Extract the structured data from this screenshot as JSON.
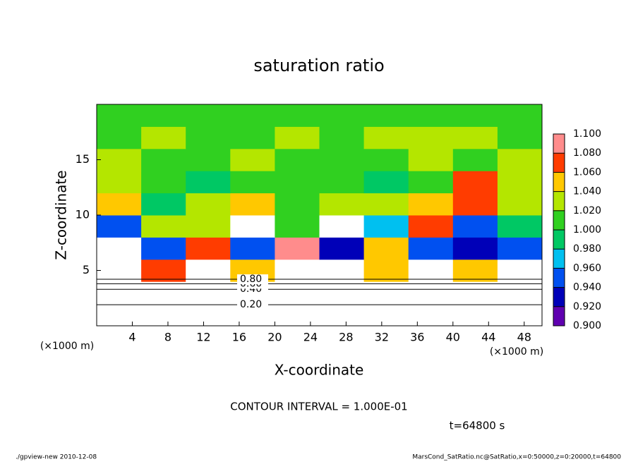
{
  "chart_data": {
    "type": "contour-map",
    "title": "saturation ratio",
    "x_label": "X-coordinate",
    "y_label": "Z-coordinate",
    "x_unit": "(×1000 m)",
    "y_unit": "(×1000 m)",
    "xlim": [
      0,
      50
    ],
    "ylim": [
      0,
      20
    ],
    "xticks": [
      4,
      8,
      12,
      16,
      20,
      24,
      28,
      32,
      36,
      40,
      44,
      48
    ],
    "yticks": [
      5,
      10,
      15
    ],
    "x": [
      2.5,
      7.5,
      12.5,
      17.5,
      22.5,
      27.5,
      32.5,
      37.5,
      42.5,
      47.5
    ],
    "z": [
      1,
      3,
      5,
      7,
      9,
      11,
      13,
      15,
      17,
      19
    ],
    "field": [
      [
        0.1,
        0.1,
        0.1,
        0.1,
        0.1,
        0.1,
        0.1,
        0.1,
        0.1,
        0.1
      ],
      [
        0.6,
        0.6,
        0.6,
        0.6,
        0.6,
        0.6,
        0.6,
        0.6,
        0.6,
        0.6
      ],
      [
        1.12,
        1.06,
        1.12,
        1.04,
        1.12,
        1.12,
        1.04,
        1.12,
        1.05,
        1.12
      ],
      [
        1.12,
        0.95,
        1.06,
        0.94,
        1.08,
        0.93,
        1.04,
        0.95,
        0.93,
        0.95
      ],
      [
        0.95,
        1.02,
        1.03,
        1.12,
        1.0,
        1.12,
        0.97,
        1.06,
        0.94,
        0.98
      ],
      [
        1.05,
        0.99,
        1.02,
        1.04,
        1.01,
        1.03,
        1.02,
        1.04,
        1.07,
        1.02
      ],
      [
        1.02,
        1.01,
        0.99,
        1.0,
        1.01,
        1.0,
        0.99,
        1.01,
        1.06,
        1.03
      ],
      [
        1.03,
        1.0,
        1.01,
        1.02,
        1.01,
        1.0,
        1.01,
        1.02,
        1.0,
        1.02
      ],
      [
        1.01,
        1.03,
        1.01,
        1.01,
        1.02,
        1.01,
        1.02,
        1.03,
        1.02,
        1.01
      ],
      [
        1.01,
        1.01,
        1.01,
        1.01,
        1.01,
        1.01,
        1.01,
        1.01,
        1.01,
        1.01
      ]
    ],
    "levels": [
      {
        "value": 0.9,
        "label": "0.900"
      },
      {
        "value": 0.92,
        "label": "0.920"
      },
      {
        "value": 0.94,
        "label": "0.940"
      },
      {
        "value": 0.96,
        "label": "0.960"
      },
      {
        "value": 0.98,
        "label": "0.980"
      },
      {
        "value": 1.0,
        "label": "1.000"
      },
      {
        "value": 1.02,
        "label": "1.020"
      },
      {
        "value": 1.04,
        "label": "1.040"
      },
      {
        "value": 1.06,
        "label": "1.060"
      },
      {
        "value": 1.08,
        "label": "1.080"
      },
      {
        "value": 1.1,
        "label": "1.100"
      }
    ],
    "colors": [
      "#6000b0",
      "#0000b8",
      "#0050f0",
      "#00c0f0",
      "#00c864",
      "#30d020",
      "#b4e600",
      "#ffc800",
      "#ff3c00",
      "#ff8c8c"
    ],
    "contours": [
      {
        "level": 0.2,
        "label": "0.20",
        "z": 1.9
      },
      {
        "level": 0.4,
        "label": "0.40",
        "z": 3.3
      },
      {
        "level": 0.6,
        "label": "0.60",
        "z": 3.8
      },
      {
        "level": 0.8,
        "label": "0.80",
        "z": 4.2
      }
    ],
    "contour_interval": "CONTOUR INTERVAL = 1.000E-01",
    "time": "t=64800 s",
    "footer_left": "./gpview-new  2010-12-08",
    "footer_right": "MarsCond_SatRatio.nc@SatRatio,x=0:50000,z=0:20000,t=64800"
  }
}
